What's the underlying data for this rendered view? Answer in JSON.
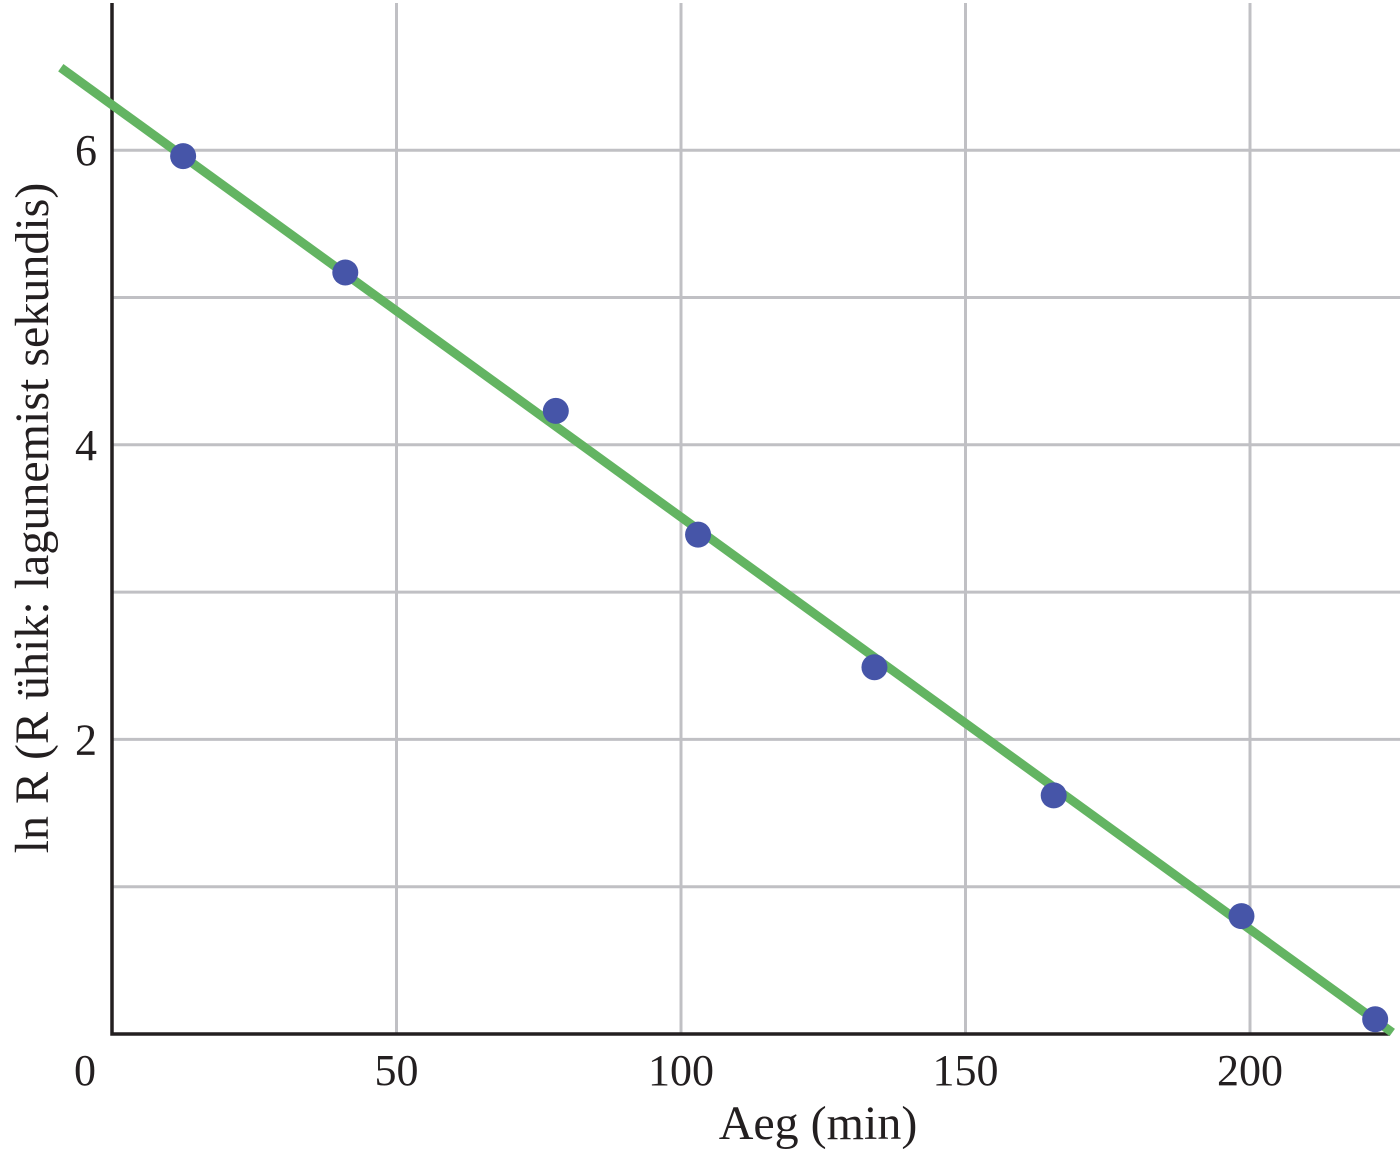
{
  "chart_data": {
    "type": "scatter",
    "title": "",
    "xlabel": "Aeg (min)",
    "ylabel": "ln R (R ühik: lagunemist sekundis)",
    "xlim": [
      0,
      225
    ],
    "ylim": [
      0,
      7
    ],
    "origin_label": "0",
    "x_ticks": [
      {
        "value": 50,
        "label": "50"
      },
      {
        "value": 100,
        "label": "100"
      },
      {
        "value": 150,
        "label": "150"
      },
      {
        "value": 200,
        "label": "200"
      }
    ],
    "y_ticks": [
      {
        "value": 2,
        "label": "2"
      },
      {
        "value": 4,
        "label": "4"
      },
      {
        "value": 6,
        "label": "6"
      }
    ],
    "x_grid": [
      50,
      100,
      150,
      200
    ],
    "y_grid": [
      1,
      2,
      3,
      4,
      5,
      6
    ],
    "grid": true,
    "series": [
      {
        "type": "scatter",
        "color": "#4655a8",
        "x": [
          12.5,
          41,
          78,
          103,
          134,
          165.5,
          198.5,
          222
        ],
        "y": [
          5.96,
          5.17,
          4.23,
          3.39,
          2.49,
          1.62,
          0.8,
          0.1
        ]
      },
      {
        "type": "line",
        "color": "#63b462",
        "x": [
          -9,
          225
        ],
        "y": [
          6.56,
          0.01
        ]
      }
    ]
  }
}
